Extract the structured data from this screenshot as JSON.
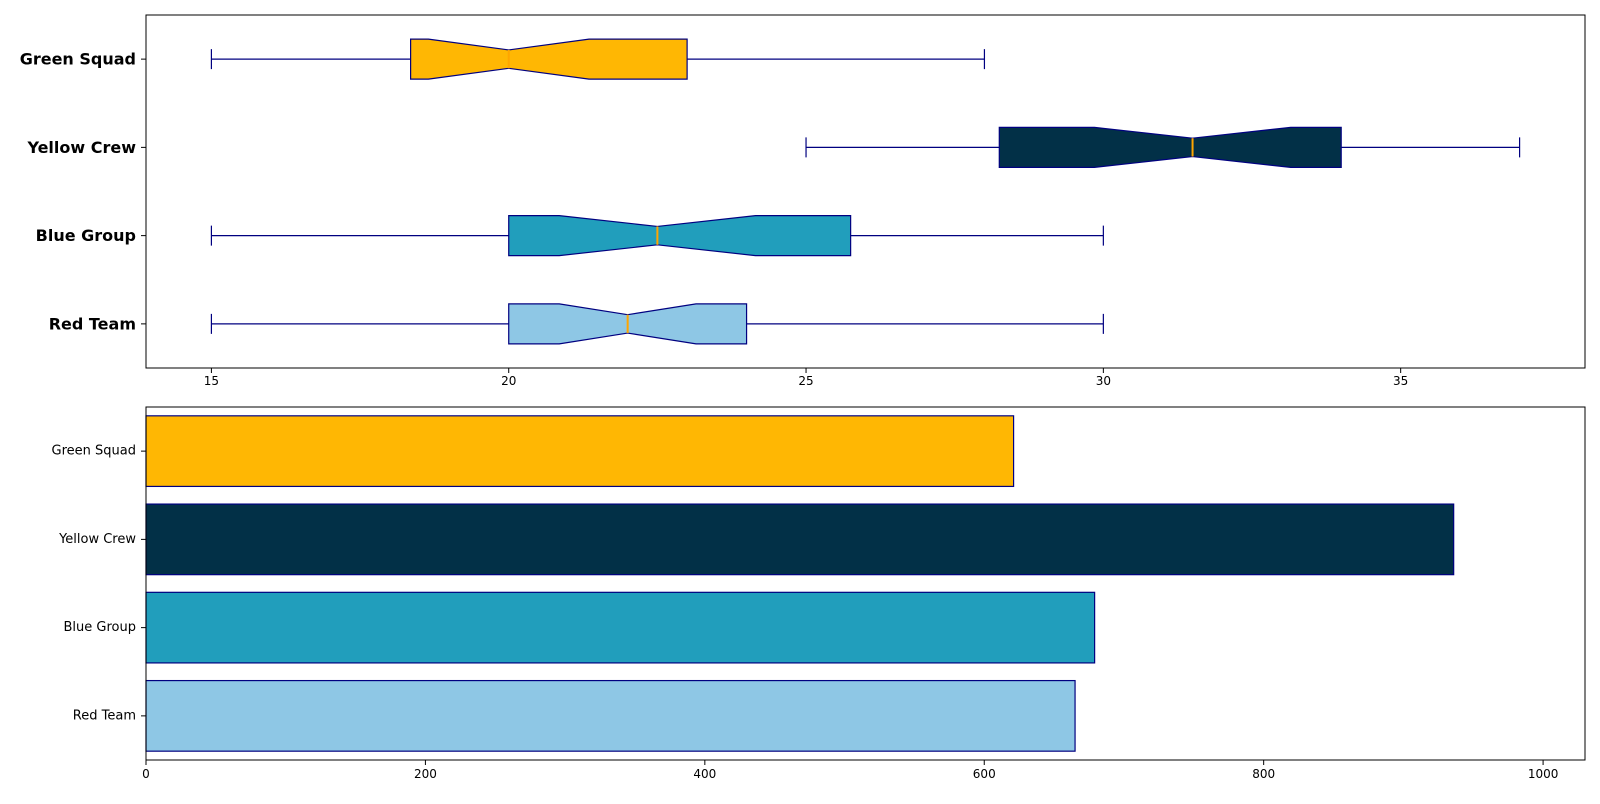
{
  "chart_data": [
    {
      "type": "box",
      "orientation": "horizontal",
      "notched": true,
      "categories": [
        "Red Team",
        "Blue Group",
        "Yellow Crew",
        "Green Squad"
      ],
      "xlim": [
        13.9,
        38.1
      ],
      "xticks": [
        15,
        20,
        25,
        30,
        35
      ],
      "category_labels_bold": true,
      "series": [
        {
          "category": "Red Team",
          "whisker_low": 15,
          "q1": 20,
          "median": 22,
          "q3": 24,
          "whisker_high": 30,
          "notch_low": 20.85,
          "notch_high": 23.15,
          "color": "#8ec7e5"
        },
        {
          "category": "Blue Group",
          "whisker_low": 15,
          "q1": 20,
          "median": 22.5,
          "q3": 25.75,
          "whisker_high": 30,
          "notch_low": 20.85,
          "notch_high": 24.15,
          "color": "#219ebc"
        },
        {
          "category": "Yellow Crew",
          "whisker_low": 25,
          "q1": 28.25,
          "median": 31.5,
          "q3": 34,
          "whisker_high": 37,
          "notch_low": 29.85,
          "notch_high": 33.15,
          "color": "#023047"
        },
        {
          "category": "Green Squad",
          "whisker_low": 15,
          "q1": 18.35,
          "median": 20,
          "q3": 23,
          "whisker_high": 28,
          "notch_low": 18.65,
          "notch_high": 21.35,
          "color": "#ffb703"
        }
      ],
      "edge_color": "#000080",
      "median_color": "#ffa500",
      "grid": false
    },
    {
      "type": "bar",
      "orientation": "horizontal",
      "categories": [
        "Red Team",
        "Blue Group",
        "Yellow Crew",
        "Green Squad"
      ],
      "values": [
        665,
        679,
        936,
        621
      ],
      "colors": [
        "#8ec7e5",
        "#219ebc",
        "#023047",
        "#ffb703"
      ],
      "edge_color": "#000080",
      "xlim": [
        0,
        1030
      ],
      "xticks": [
        0,
        200,
        400,
        600,
        800,
        1000
      ],
      "grid": false
    }
  ]
}
